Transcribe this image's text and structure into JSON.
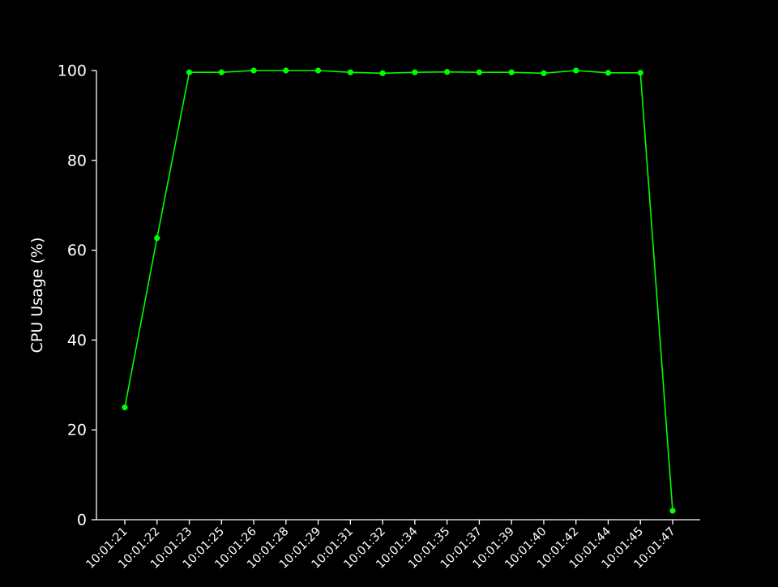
{
  "chart_data": {
    "type": "line",
    "title": "",
    "xlabel": "",
    "ylabel": "CPU Usage (%)",
    "x": [
      "10:01:21",
      "10:01:22",
      "10:01:23",
      "10:01:25",
      "10:01:26",
      "10:01:28",
      "10:01:29",
      "10:01:31",
      "10:01:32",
      "10:01:34",
      "10:01:35",
      "10:01:37",
      "10:01:39",
      "10:01:40",
      "10:01:42",
      "10:01:44",
      "10:01:45",
      "10:01:47"
    ],
    "series": [
      {
        "values": [
          25.0,
          62.7,
          99.6,
          99.6,
          100.0,
          100.0,
          100.0,
          99.6,
          99.4,
          99.6,
          99.7,
          99.6,
          99.6,
          99.4,
          100.0,
          99.5,
          99.5,
          2.0
        ],
        "color": "#00ff00"
      }
    ],
    "ylim": [
      0,
      100
    ],
    "yticks": [
      0,
      20,
      40,
      60,
      80,
      100
    ],
    "grid": false,
    "legend": "none",
    "background_color": "#000000",
    "foreground_color": "#ffffff"
  }
}
